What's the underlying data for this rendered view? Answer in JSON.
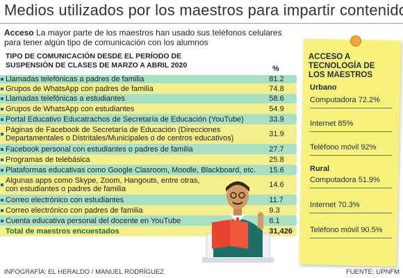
{
  "title": "Medios utilizados por los maestros para impartir contenidos",
  "intro": {
    "lead": "Acceso",
    "text": "La mayor parte de los maestros han usado sus teléfonos celulares para tener algún tipo de comunicación con los alumnos"
  },
  "table": {
    "heading_line1": "TIPO DE COMUNICACIÓN DESDE EL PERÍODO DE",
    "heading_line2": "SUSPENSIÓN DE CLASES DE MARZO A ABRIL 2020",
    "pct_header": "%",
    "rows": [
      {
        "label": "Llamadas telefónicas a padres de familia",
        "value": "81.2"
      },
      {
        "label": "Grupos de WhatsApp con padres de familia",
        "value": "74.8"
      },
      {
        "label": "Llamadas telefónicas a estudiantes",
        "value": "58.6"
      },
      {
        "label": "Grupos de WhatsApp con estudiantes",
        "value": "54.9"
      },
      {
        "label": "Portal Educativo Educatrachos de Secretaría de Educación (YouTube)",
        "value": "33.9"
      },
      {
        "label_l1": "Páginas de Facebook de Secretaría de Educación (Direcciones",
        "label_l2": "Departamentales o Distritales/Municipales o de centros educativos)",
        "value": "31.9"
      },
      {
        "label": "Facebook personal con estudiantes o padres de familia",
        "value": "27.7"
      },
      {
        "label": "Programas de telebásica",
        "value": "25.8"
      },
      {
        "label": "Plataformas educativas como Google Clasroom, Moodle, Blackboard, etc.",
        "value": "15.6"
      },
      {
        "label_l1": "Algunas apps como Skype, Zoom, Hangouts, entre otras,",
        "label_l2": "con estudiantes o padres de familia",
        "value": "14.6"
      },
      {
        "label": "Correo electrónico con estudiantes",
        "value": "11.7"
      },
      {
        "label": "Correo electrónico con padres de familia",
        "value": "9.3"
      },
      {
        "label": "Cuenta educativa personal del docente en YouTube",
        "value": "8.1"
      }
    ],
    "total_label": "Total de maestros encuestados",
    "total_value": "31,426"
  },
  "note": {
    "heading_l1": "ACCESO A",
    "heading_l2": "TECNOLOGÍA DE",
    "heading_l3": "LOS MAESTROS",
    "urbano_label": "Urbano",
    "urbano": [
      "Computadora 72.2%",
      "Internet 85%",
      "Teléfono móvil 92%"
    ],
    "rural_label": "Rural",
    "rural": [
      "Computadora 51.9%",
      "Internet 70.3%",
      "Teléfono móvil 90.5%"
    ]
  },
  "footer": {
    "credit": "INFOGRAFÍA: EL HERALDO / MANUEL RODRÍGUEZ",
    "source": "FUENTE: UPNFM"
  },
  "colors": {
    "yellow_row": "#f4ef8c",
    "green_row": "#a9dfc4",
    "note": "#f7f37a",
    "total_text": "#1a6f3a"
  }
}
